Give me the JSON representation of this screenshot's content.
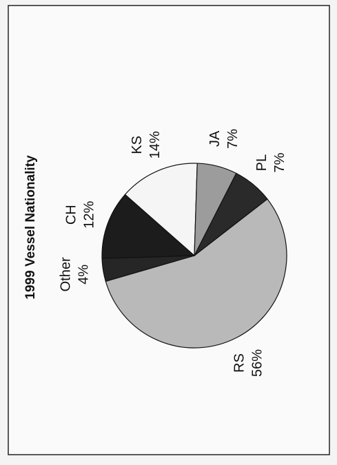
{
  "chart_data": {
    "type": "pie",
    "title": "1999 Vessel Nationality",
    "categories": [
      "RS",
      "Other",
      "CH",
      "KS",
      "JA",
      "PL"
    ],
    "values": [
      56,
      4,
      12,
      14,
      7,
      7
    ],
    "value_labels": [
      "56%",
      "4%",
      "12%",
      "14%",
      "7%",
      "7%"
    ],
    "colors": [
      "#b9b9b9",
      "#262626",
      "#1c1c1c",
      "#f5f5f5",
      "#9c9c9c",
      "#2a2a2a"
    ]
  }
}
